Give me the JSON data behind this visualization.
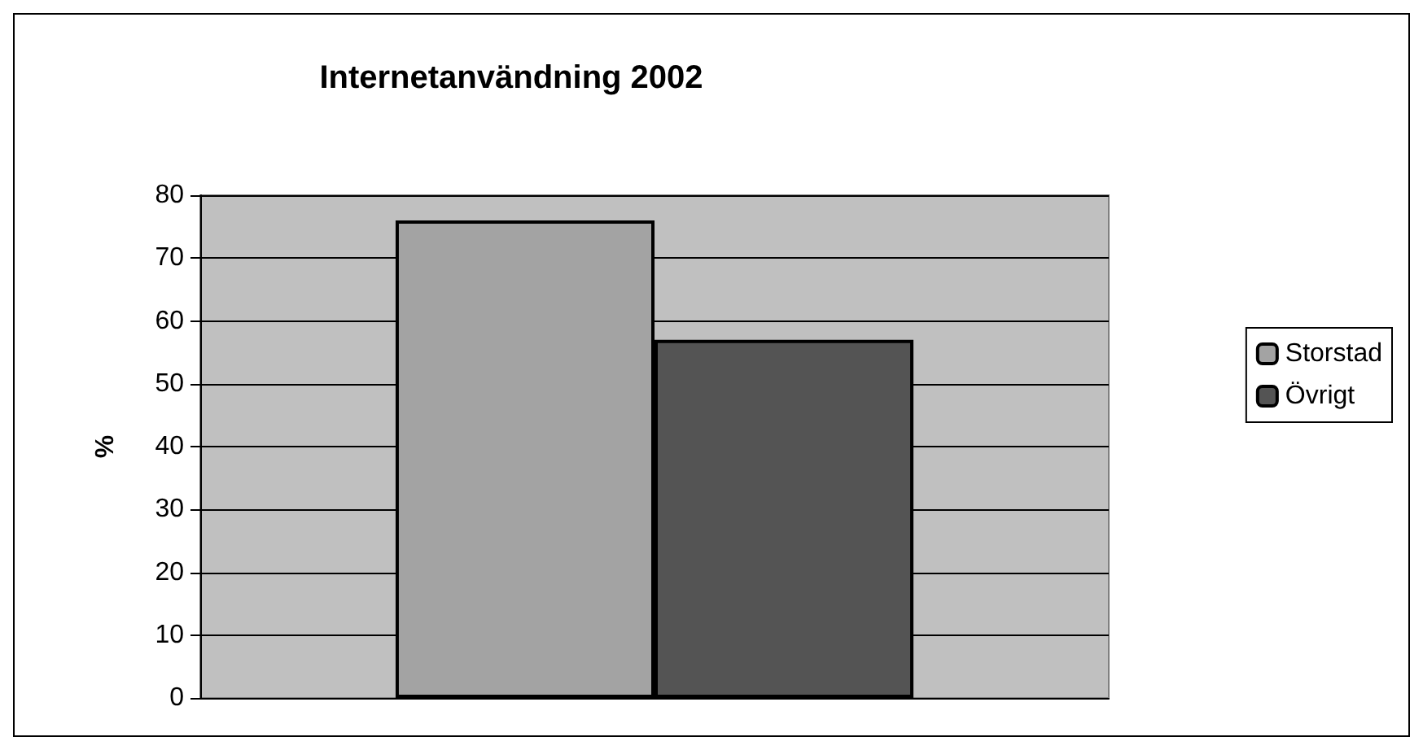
{
  "chart_data": {
    "type": "bar",
    "title": "Internetanvändning 2002",
    "ylabel": "%",
    "categories": [
      null
    ],
    "series": [
      {
        "name": "Storstad",
        "color": "#a3a3a3",
        "values": [
          76
        ]
      },
      {
        "name": "Övrigt",
        "color": "#545454",
        "values": [
          57
        ]
      }
    ],
    "ylim": [
      0,
      80
    ],
    "yticks": [
      0,
      10,
      20,
      30,
      40,
      50,
      60,
      70,
      80
    ],
    "grid": "y",
    "legend": "right"
  }
}
